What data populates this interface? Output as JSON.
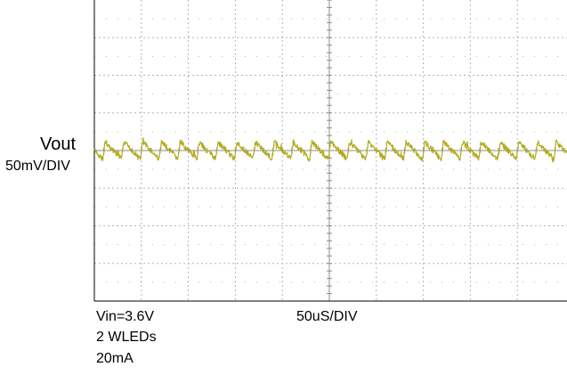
{
  "chart_data": {
    "type": "line",
    "title": "",
    "channel": {
      "name": "Vout",
      "scale": "50mV/DIV",
      "color": "#b3aa1e"
    },
    "time_scale": "50uS/DIV",
    "conditions": [
      "Vin=3.6V",
      "2 WLEDs",
      "20mA"
    ],
    "grid": true,
    "divisions": {
      "x": 10,
      "y": 8
    },
    "waveform": {
      "shape": "sawtooth",
      "period_div": 0.4,
      "peak_to_peak_div": 0.45,
      "center_div": 0
    },
    "colors": {
      "grid": "#b4b4b4",
      "frame": "#000000",
      "background": "#ffffff"
    }
  }
}
